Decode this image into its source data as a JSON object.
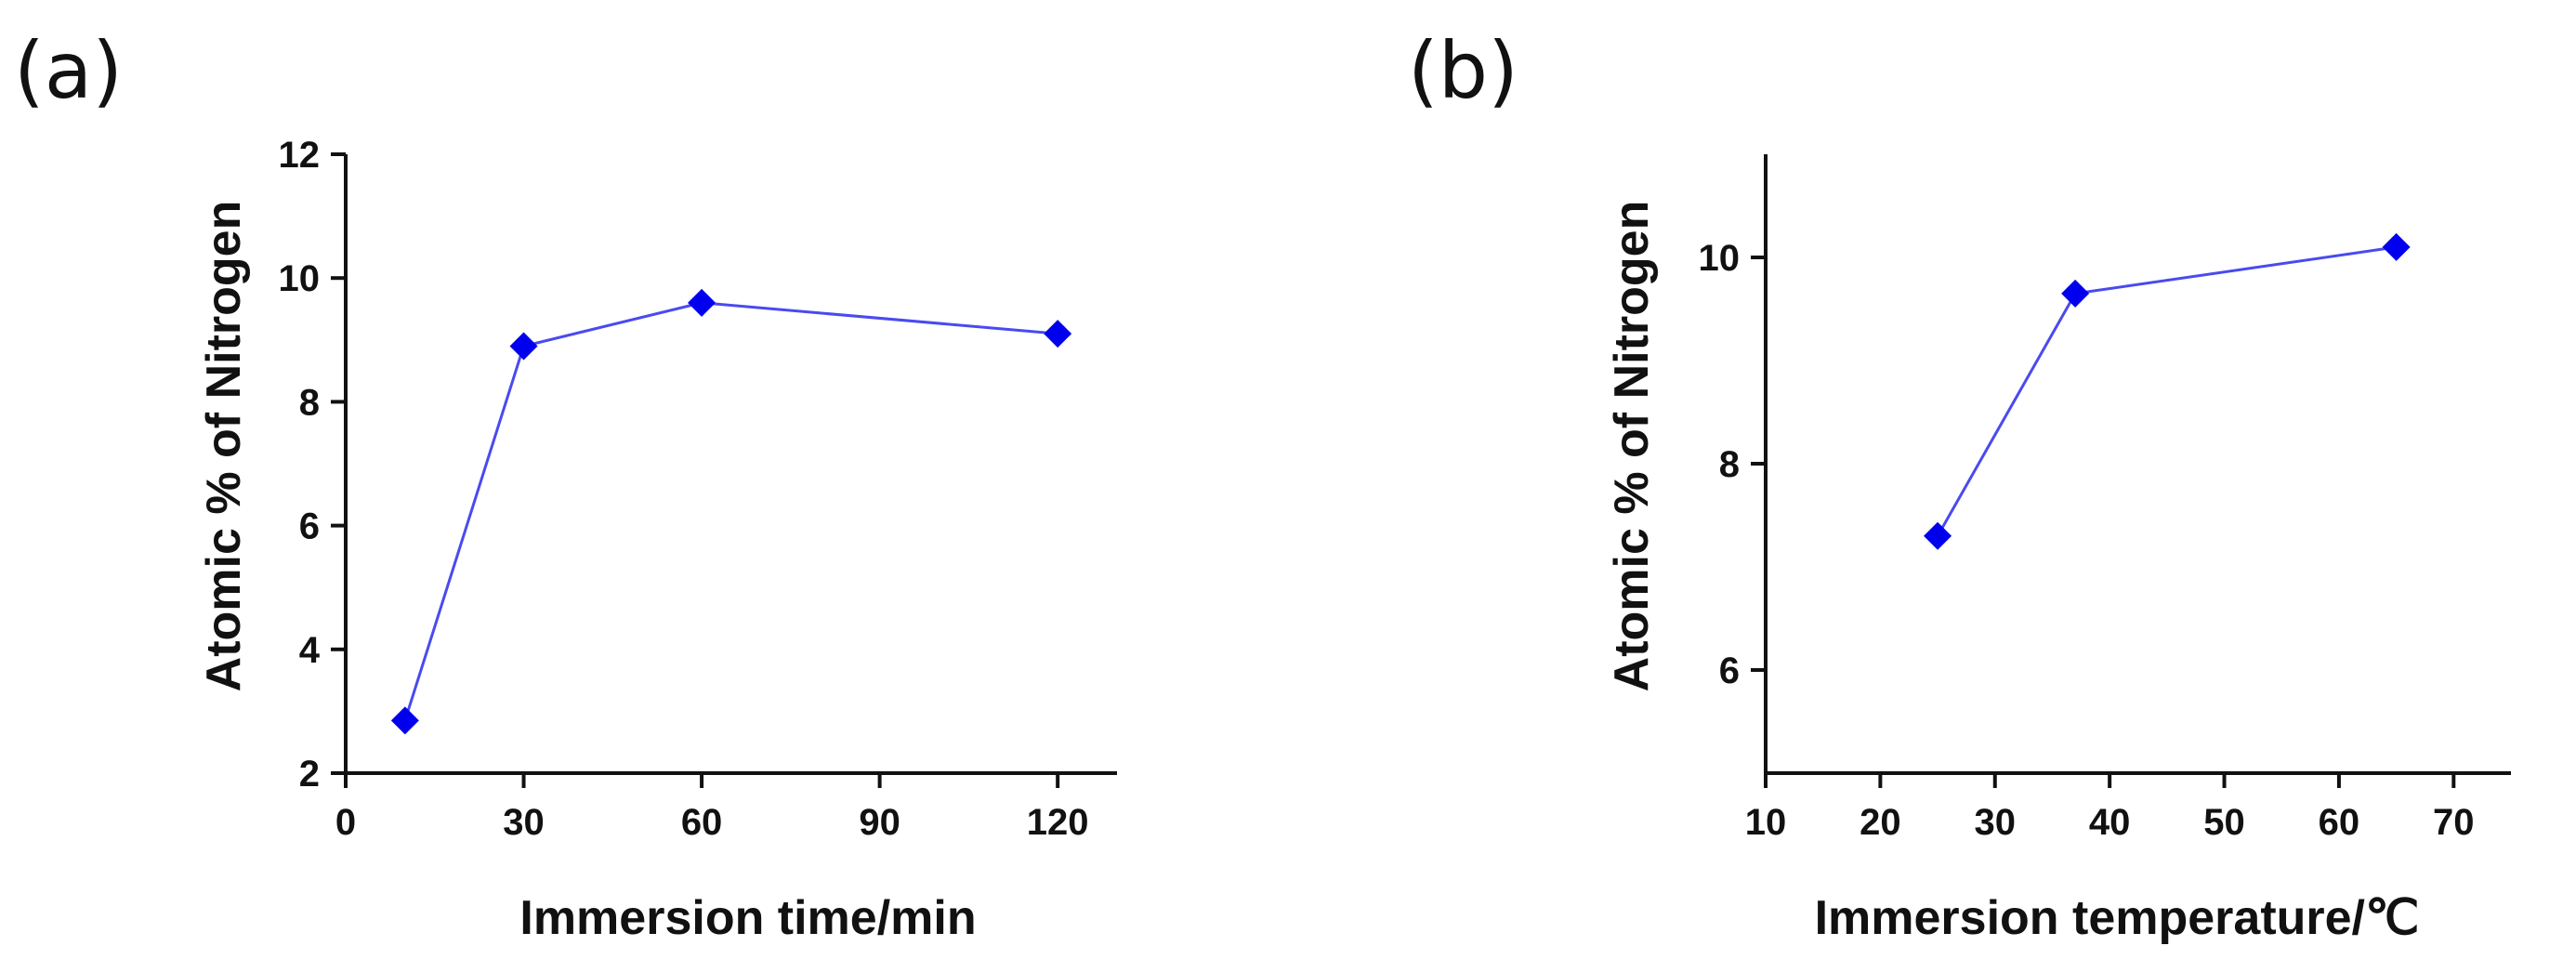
{
  "chart_data": [
    {
      "type": "line",
      "panel_label": "(a)",
      "xlabel": "Immersion time/min",
      "ylabel": "Atomic % of Nitrogen",
      "xlim": [
        0,
        130
      ],
      "ylim": [
        2,
        12
      ],
      "xticks": [
        0,
        30,
        60,
        90,
        120
      ],
      "yticks": [
        2,
        4,
        6,
        8,
        10,
        12
      ],
      "grid": false,
      "series": [
        {
          "name": "Nitrogen",
          "marker": "diamond",
          "x": [
            10,
            30,
            60,
            120
          ],
          "y": [
            2.85,
            8.9,
            9.6,
            9.1
          ]
        }
      ]
    },
    {
      "type": "line",
      "panel_label": "(b)",
      "xlabel": "Immersion temperature/℃",
      "ylabel": "Atomic % of Nitrogen",
      "xlim": [
        10,
        75
      ],
      "ylim": [
        5,
        11
      ],
      "xticks": [
        10,
        20,
        30,
        40,
        50,
        60,
        70
      ],
      "yticks": [
        6,
        8,
        10
      ],
      "grid": false,
      "series": [
        {
          "name": "Nitrogen",
          "marker": "diamond",
          "x": [
            25,
            37,
            65
          ],
          "y": [
            7.3,
            9.65,
            10.1
          ]
        }
      ]
    }
  ],
  "colors": {
    "marker": "#0000ee",
    "line": "#4a4af0",
    "axis": "#111111"
  }
}
